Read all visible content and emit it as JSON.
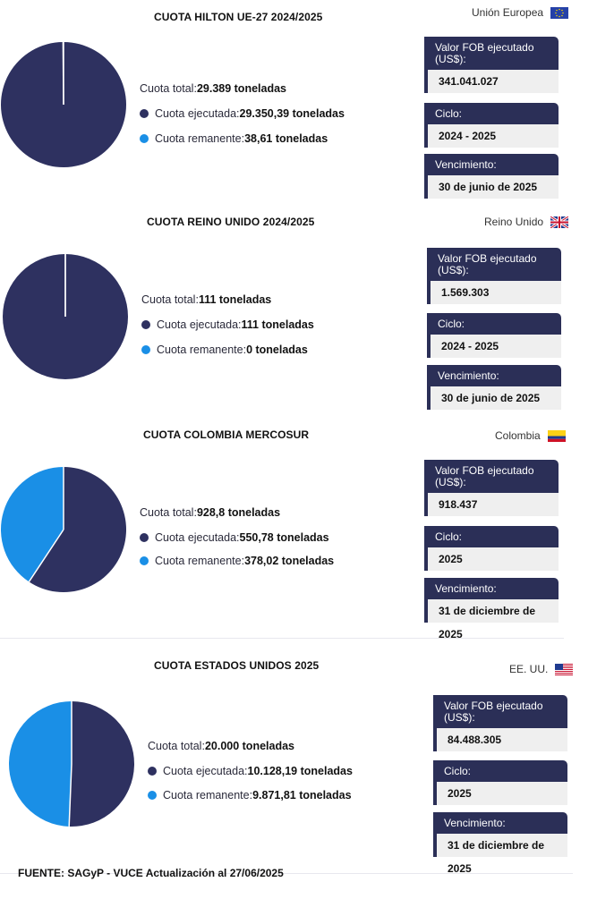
{
  "sections": [
    {
      "title": "CUOTA HILTON UE-27 2024/2025",
      "country": "Unión Europea",
      "flag": "eu-flag-icon",
      "legend": {
        "total_label": "Cuota total: ",
        "total_value": "29.389 toneladas",
        "exec_label": "Cuota ejecutada: ",
        "exec_value": "29.350,39 toneladas",
        "rem_label": "Cuota remanente: ",
        "rem_value": "38,61 toneladas"
      },
      "cards": [
        {
          "label": "Valor FOB ejecutado (US$):",
          "value": "341.041.027"
        },
        {
          "label": "Ciclo:",
          "value": "2024 - 2025"
        },
        {
          "label": "Vencimiento:",
          "value": "30 de junio de 2025"
        }
      ]
    },
    {
      "title": "CUOTA REINO UNIDO 2024/2025",
      "country": "Reino Unido",
      "flag": "uk-flag-icon",
      "legend": {
        "total_label": "Cuota total: ",
        "total_value": "111 toneladas",
        "exec_label": "Cuota ejecutada: ",
        "exec_value": "111 toneladas",
        "rem_label": "Cuota remanente: ",
        "rem_value": "0 toneladas"
      },
      "cards": [
        {
          "label": "Valor FOB ejecutado (US$):",
          "value": "1.569.303"
        },
        {
          "label": "Ciclo:",
          "value": "2024 - 2025"
        },
        {
          "label": "Vencimiento:",
          "value": "30 de junio de 2025"
        }
      ]
    },
    {
      "title": "CUOTA COLOMBIA MERCOSUR",
      "country": "Colombia",
      "flag": "colombia-flag-icon",
      "legend": {
        "total_label": "Cuota total: ",
        "total_value": "928,8 toneladas",
        "exec_label": "Cuota ejecutada: ",
        "exec_value": "550,78 toneladas",
        "rem_label": "Cuota remanente: ",
        "rem_value": "378,02 toneladas"
      },
      "cards": [
        {
          "label": "Valor FOB ejecutado (US$):",
          "value": "918.437"
        },
        {
          "label": "Ciclo:",
          "value": "2025"
        },
        {
          "label": "Vencimiento:",
          "value": "31 de diciembre de 2025"
        }
      ]
    },
    {
      "title": "CUOTA ESTADOS UNIDOS 2025",
      "country": "EE. UU.",
      "flag": "usa-flag-icon",
      "legend": {
        "total_label": "Cuota total: ",
        "total_value": "20.000 toneladas",
        "exec_label": "Cuota ejecutada: ",
        "exec_value": "10.128,19 toneladas",
        "rem_label": "Cuota remanente: ",
        "rem_value": "9.871,81 toneladas"
      },
      "cards": [
        {
          "label": "Valor FOB ejecutado (US$):",
          "value": "84.488.305"
        },
        {
          "label": "Ciclo:",
          "value": "2025"
        },
        {
          "label": "Vencimiento:",
          "value": "31 de diciembre de 2025"
        }
      ]
    }
  ],
  "footer": "FUENTE: SAGyP - VUCE Actualización al 27/06/2025",
  "colors": {
    "executed": "#2e3160",
    "remaining": "#1a8fe6"
  },
  "chart_data": [
    {
      "type": "pie",
      "title": "CUOTA HILTON UE-27 2024/2025",
      "categories": [
        "Cuota ejecutada",
        "Cuota remanente"
      ],
      "values": [
        29350.39,
        38.61
      ]
    },
    {
      "type": "pie",
      "title": "CUOTA REINO UNIDO 2024/2025",
      "categories": [
        "Cuota ejecutada",
        "Cuota remanente"
      ],
      "values": [
        111,
        0
      ]
    },
    {
      "type": "pie",
      "title": "CUOTA COLOMBIA MERCOSUR",
      "categories": [
        "Cuota ejecutada",
        "Cuota remanente"
      ],
      "values": [
        550.78,
        378.02
      ]
    },
    {
      "type": "pie",
      "title": "CUOTA ESTADOS UNIDOS 2025",
      "categories": [
        "Cuota ejecutada",
        "Cuota remanente"
      ],
      "values": [
        10128.19,
        9871.81
      ]
    }
  ]
}
